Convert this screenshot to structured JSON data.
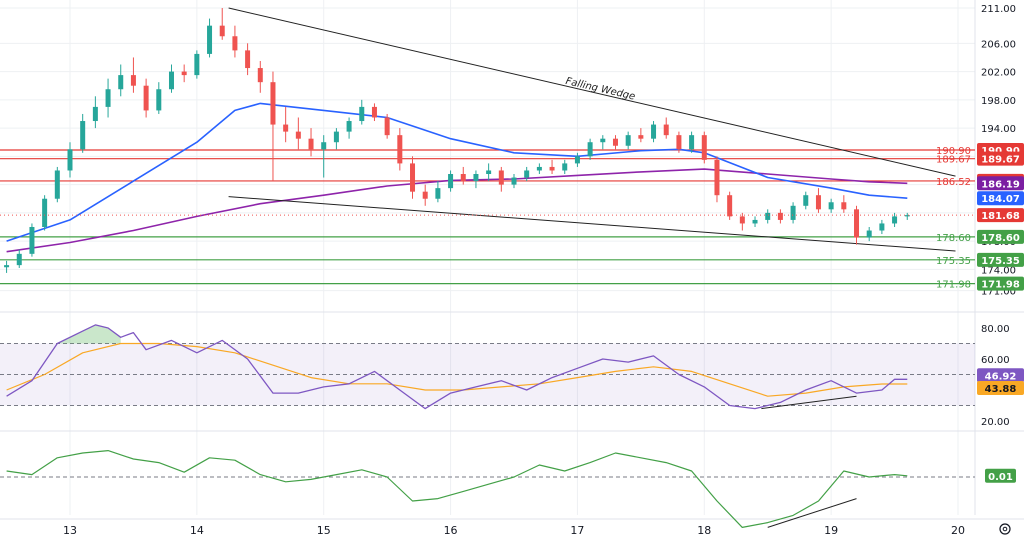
{
  "chart_data": [
    {
      "type": "candlestick",
      "title": "",
      "annotation": "Falling Wedge",
      "x_ticks": [
        "13",
        "14",
        "15",
        "16",
        "17",
        "18",
        "19",
        "20"
      ],
      "y_ticks": [
        211.0,
        206.0,
        202.0,
        198.0,
        194.0,
        190.0,
        186.0,
        182.0,
        178.0,
        174.0,
        171.0
      ],
      "ylim": [
        170.2,
        211.0
      ],
      "xlim": [
        12.5,
        20.0
      ],
      "levels": [
        {
          "value": 190.9,
          "label": "190.90",
          "color": "#e53935"
        },
        {
          "value": 189.67,
          "label": "189.67",
          "color": "#e53935"
        },
        {
          "value": 186.52,
          "label": "186.52",
          "color": "#e53935"
        },
        {
          "value": 178.6,
          "label": "178.60",
          "color": "#43a047"
        },
        {
          "value": 175.35,
          "label": "175.35",
          "color": "#43a047"
        },
        {
          "value": 171.98,
          "label": "171.98",
          "color": "#43a047"
        }
      ],
      "price_tags": [
        {
          "value": 190.9,
          "label": "190.90",
          "color": "#e53935"
        },
        {
          "value": 189.67,
          "label": "189.67",
          "color": "#e53935"
        },
        {
          "value": 186.52,
          "label": "186.52",
          "color": "#e53935"
        },
        {
          "value": 186.19,
          "label": "186.19",
          "color": "#7b1fa2"
        },
        {
          "value": 184.07,
          "label": "184.07",
          "color": "#2962ff"
        },
        {
          "value": 181.68,
          "label": "181.68",
          "color": "#e53935"
        },
        {
          "value": 178.6,
          "label": "178.60",
          "color": "#43a047"
        },
        {
          "value": 175.35,
          "label": "175.35",
          "color": "#43a047"
        },
        {
          "value": 171.98,
          "label": "171.98",
          "color": "#43a047"
        }
      ],
      "last_price": 181.68,
      "candles": [
        [
          12.5,
          174.3,
          175.2,
          173.5,
          174.6
        ],
        [
          12.6,
          174.6,
          176.8,
          174.2,
          176.2
        ],
        [
          12.7,
          176.2,
          180.5,
          175.8,
          180.0
        ],
        [
          12.8,
          180.0,
          184.5,
          179.5,
          184.0
        ],
        [
          12.9,
          184.0,
          188.5,
          183.5,
          188.0
        ],
        [
          13.0,
          188.0,
          192.0,
          187.0,
          191.0
        ],
        [
          13.1,
          191.0,
          196.0,
          190.5,
          195.0
        ],
        [
          13.2,
          195.0,
          198.5,
          194.0,
          197.0
        ],
        [
          13.3,
          197.0,
          201.0,
          195.5,
          199.5
        ],
        [
          13.4,
          199.5,
          203.0,
          198.5,
          201.5
        ],
        [
          13.5,
          201.5,
          204.0,
          199.0,
          200.0
        ],
        [
          13.6,
          200.0,
          201.0,
          195.5,
          196.5
        ],
        [
          13.7,
          196.5,
          200.5,
          196.0,
          199.5
        ],
        [
          13.8,
          199.5,
          203.0,
          199.0,
          202.0
        ],
        [
          13.9,
          202.0,
          203.0,
          200.5,
          201.5
        ],
        [
          14.0,
          201.5,
          205.0,
          201.0,
          204.5
        ],
        [
          14.1,
          204.5,
          209.5,
          204.0,
          208.5
        ],
        [
          14.2,
          208.5,
          211.0,
          206.5,
          207.0
        ],
        [
          14.3,
          207.0,
          208.5,
          204.0,
          205.0
        ],
        [
          14.4,
          205.0,
          206.0,
          201.5,
          202.5
        ],
        [
          14.5,
          202.5,
          203.5,
          199.0,
          200.5
        ],
        [
          14.6,
          200.5,
          202.0,
          186.5,
          194.5
        ],
        [
          14.7,
          194.5,
          197.0,
          192.0,
          193.5
        ],
        [
          14.8,
          193.5,
          195.5,
          191.0,
          192.5
        ],
        [
          14.9,
          192.5,
          194.0,
          190.0,
          191.0
        ],
        [
          15.0,
          191.0,
          193.0,
          187.0,
          192.0
        ],
        [
          15.1,
          192.0,
          194.0,
          191.0,
          193.5
        ],
        [
          15.2,
          193.5,
          195.5,
          192.5,
          195.0
        ],
        [
          15.3,
          195.0,
          198.0,
          194.5,
          197.0
        ],
        [
          15.4,
          197.0,
          197.5,
          195.0,
          195.5
        ],
        [
          15.5,
          195.5,
          196.0,
          192.5,
          193.0
        ],
        [
          15.6,
          193.0,
          194.0,
          188.0,
          189.0
        ],
        [
          15.7,
          189.0,
          190.0,
          184.0,
          185.0
        ],
        [
          15.8,
          185.0,
          186.0,
          183.0,
          184.0
        ],
        [
          15.9,
          184.0,
          186.5,
          183.5,
          185.5
        ],
        [
          16.0,
          185.5,
          188.0,
          185.0,
          187.5
        ],
        [
          16.1,
          187.5,
          188.5,
          186.0,
          186.5
        ],
        [
          16.2,
          186.5,
          188.0,
          185.5,
          187.5
        ],
        [
          16.3,
          187.5,
          189.0,
          186.5,
          188.0
        ],
        [
          16.4,
          188.0,
          188.5,
          185.0,
          186.0
        ],
        [
          16.5,
          186.0,
          187.5,
          185.5,
          187.0
        ],
        [
          16.6,
          187.0,
          188.5,
          186.5,
          188.0
        ],
        [
          16.7,
          188.0,
          189.0,
          187.5,
          188.5
        ],
        [
          16.8,
          188.5,
          189.5,
          187.5,
          188.0
        ],
        [
          16.9,
          188.0,
          189.5,
          187.5,
          189.0
        ],
        [
          17.0,
          189.0,
          190.5,
          188.5,
          190.0
        ],
        [
          17.1,
          190.0,
          192.5,
          189.5,
          192.0
        ],
        [
          17.2,
          192.0,
          193.0,
          191.0,
          192.5
        ],
        [
          17.3,
          192.5,
          193.0,
          191.0,
          191.5
        ],
        [
          17.4,
          191.5,
          193.5,
          191.0,
          193.0
        ],
        [
          17.5,
          193.0,
          194.0,
          192.0,
          192.5
        ],
        [
          17.6,
          192.5,
          195.0,
          192.0,
          194.5
        ],
        [
          17.7,
          194.5,
          195.5,
          192.5,
          193.0
        ],
        [
          17.8,
          193.0,
          193.5,
          190.5,
          191.0
        ],
        [
          17.9,
          191.0,
          193.5,
          190.5,
          193.0
        ],
        [
          18.0,
          193.0,
          193.5,
          189.0,
          189.5
        ],
        [
          18.1,
          189.5,
          190.0,
          183.5,
          184.5
        ],
        [
          18.2,
          184.5,
          185.0,
          181.0,
          181.5
        ],
        [
          18.3,
          181.5,
          182.0,
          179.5,
          180.5
        ],
        [
          18.4,
          180.5,
          181.5,
          180.0,
          181.0
        ],
        [
          18.5,
          181.0,
          182.5,
          180.5,
          182.0
        ],
        [
          18.6,
          182.0,
          182.5,
          180.5,
          181.0
        ],
        [
          18.7,
          181.0,
          183.5,
          180.5,
          183.0
        ],
        [
          18.8,
          183.0,
          185.0,
          182.5,
          184.5
        ],
        [
          18.9,
          184.5,
          185.5,
          182.0,
          182.5
        ],
        [
          19.0,
          182.5,
          184.0,
          182.0,
          183.5
        ],
        [
          19.1,
          183.5,
          184.5,
          182.0,
          182.5
        ],
        [
          19.2,
          182.5,
          183.0,
          177.5,
          178.5
        ],
        [
          19.3,
          178.5,
          180.0,
          178.0,
          179.5
        ],
        [
          19.4,
          179.5,
          181.0,
          179.0,
          180.5
        ],
        [
          19.5,
          180.5,
          182.0,
          180.0,
          181.5
        ],
        [
          19.6,
          181.5,
          182.0,
          181.0,
          181.68
        ]
      ],
      "ma_blue": [
        [
          12.5,
          178.0
        ],
        [
          13.0,
          181.0
        ],
        [
          13.5,
          186.5
        ],
        [
          14.0,
          192.0
        ],
        [
          14.3,
          196.5
        ],
        [
          14.5,
          197.5
        ],
        [
          15.0,
          196.5
        ],
        [
          15.5,
          195.5
        ],
        [
          16.0,
          192.5
        ],
        [
          16.5,
          190.5
        ],
        [
          17.0,
          190.0
        ],
        [
          17.5,
          190.8
        ],
        [
          17.8,
          191.0
        ],
        [
          18.0,
          190.5
        ],
        [
          18.5,
          187.0
        ],
        [
          19.0,
          185.5
        ],
        [
          19.3,
          184.5
        ],
        [
          19.6,
          184.07
        ]
      ],
      "ma_purple": [
        [
          12.5,
          176.5
        ],
        [
          13.0,
          177.8
        ],
        [
          13.5,
          179.5
        ],
        [
          14.0,
          181.5
        ],
        [
          14.5,
          183.3
        ],
        [
          15.0,
          184.5
        ],
        [
          15.5,
          185.8
        ],
        [
          16.0,
          186.6
        ],
        [
          16.5,
          186.8
        ],
        [
          17.0,
          187.3
        ],
        [
          17.5,
          187.8
        ],
        [
          18.0,
          188.2
        ],
        [
          18.5,
          187.5
        ],
        [
          19.0,
          186.8
        ],
        [
          19.3,
          186.4
        ],
        [
          19.6,
          186.19
        ]
      ],
      "wedge_upper": [
        [
          14.25,
          211.0
        ],
        [
          19.98,
          187.2
        ]
      ],
      "wedge_lower": [
        [
          14.25,
          184.3
        ],
        [
          19.98,
          176.6
        ]
      ]
    },
    {
      "type": "line",
      "name": "RSI",
      "y_ticks": [
        80.0,
        60.0,
        40.0,
        20.0
      ],
      "ylim": [
        18,
        88
      ],
      "band": [
        30,
        70
      ],
      "midline": 50,
      "last_value": 46.92,
      "last_label": "46.92",
      "signal_last_value": 43.88,
      "signal_last_label": "43.88",
      "rsi": [
        [
          12.5,
          36
        ],
        [
          12.7,
          46
        ],
        [
          12.9,
          70
        ],
        [
          13.1,
          78
        ],
        [
          13.2,
          82
        ],
        [
          13.3,
          80
        ],
        [
          13.4,
          74
        ],
        [
          13.5,
          77
        ],
        [
          13.6,
          66
        ],
        [
          13.8,
          72
        ],
        [
          14.0,
          64
        ],
        [
          14.2,
          72
        ],
        [
          14.4,
          60
        ],
        [
          14.6,
          38
        ],
        [
          14.8,
          38
        ],
        [
          15.0,
          42
        ],
        [
          15.2,
          44
        ],
        [
          15.4,
          52
        ],
        [
          15.6,
          40
        ],
        [
          15.8,
          28
        ],
        [
          16.0,
          38
        ],
        [
          16.2,
          42
        ],
        [
          16.4,
          46
        ],
        [
          16.6,
          40
        ],
        [
          16.8,
          48
        ],
        [
          17.0,
          54
        ],
        [
          17.2,
          60
        ],
        [
          17.4,
          58
        ],
        [
          17.6,
          62
        ],
        [
          17.8,
          50
        ],
        [
          18.0,
          42
        ],
        [
          18.2,
          30
        ],
        [
          18.4,
          28
        ],
        [
          18.6,
          32
        ],
        [
          18.8,
          40
        ],
        [
          19.0,
          46
        ],
        [
          19.2,
          38
        ],
        [
          19.4,
          40
        ],
        [
          19.5,
          46.92
        ],
        [
          19.6,
          46.92
        ]
      ],
      "signal": [
        [
          12.5,
          40
        ],
        [
          12.8,
          50
        ],
        [
          13.1,
          64
        ],
        [
          13.4,
          70
        ],
        [
          13.7,
          70
        ],
        [
          14.0,
          68
        ],
        [
          14.3,
          64
        ],
        [
          14.6,
          56
        ],
        [
          14.9,
          48
        ],
        [
          15.2,
          44
        ],
        [
          15.5,
          44
        ],
        [
          15.8,
          40
        ],
        [
          16.1,
          40
        ],
        [
          16.4,
          42
        ],
        [
          16.7,
          44
        ],
        [
          17.0,
          48
        ],
        [
          17.3,
          52
        ],
        [
          17.6,
          55
        ],
        [
          17.9,
          52
        ],
        [
          18.2,
          44
        ],
        [
          18.5,
          36
        ],
        [
          18.8,
          38
        ],
        [
          19.1,
          42
        ],
        [
          19.4,
          43.88
        ],
        [
          19.6,
          43.88
        ]
      ],
      "divergence": [
        [
          18.45,
          28
        ],
        [
          19.2,
          36
        ]
      ]
    },
    {
      "type": "line",
      "name": "Momentum",
      "ylim": [
        -0.55,
        0.38
      ],
      "zero_line": 0,
      "last_value": 0.01,
      "last_label": "0.01",
      "values": [
        [
          12.5,
          0.05
        ],
        [
          12.7,
          0.02
        ],
        [
          12.9,
          0.16
        ],
        [
          13.1,
          0.2
        ],
        [
          13.3,
          0.22
        ],
        [
          13.5,
          0.15
        ],
        [
          13.7,
          0.12
        ],
        [
          13.9,
          0.04
        ],
        [
          14.1,
          0.16
        ],
        [
          14.3,
          0.14
        ],
        [
          14.5,
          0.02
        ],
        [
          14.7,
          -0.04
        ],
        [
          14.9,
          -0.02
        ],
        [
          15.1,
          0.02
        ],
        [
          15.3,
          0.06
        ],
        [
          15.5,
          0.0
        ],
        [
          15.7,
          -0.2
        ],
        [
          15.9,
          -0.18
        ],
        [
          16.1,
          -0.12
        ],
        [
          16.3,
          -0.06
        ],
        [
          16.5,
          0.0
        ],
        [
          16.7,
          0.1
        ],
        [
          16.9,
          0.05
        ],
        [
          17.1,
          0.12
        ],
        [
          17.3,
          0.2
        ],
        [
          17.5,
          0.16
        ],
        [
          17.7,
          0.12
        ],
        [
          17.9,
          0.05
        ],
        [
          18.1,
          -0.2
        ],
        [
          18.3,
          -0.42
        ],
        [
          18.5,
          -0.38
        ],
        [
          18.7,
          -0.32
        ],
        [
          18.9,
          -0.2
        ],
        [
          19.1,
          0.05
        ],
        [
          19.3,
          0.0
        ],
        [
          19.5,
          0.02
        ],
        [
          19.6,
          0.01
        ]
      ],
      "divergence": [
        [
          18.5,
          -0.42
        ],
        [
          19.2,
          -0.18
        ]
      ]
    }
  ]
}
